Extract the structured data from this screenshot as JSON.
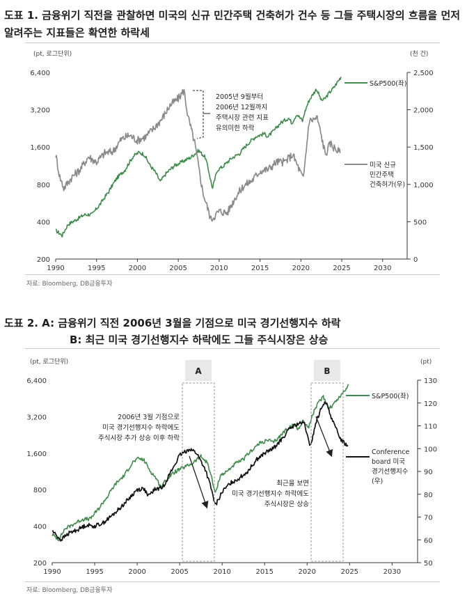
{
  "chart1": {
    "title_line1": "도표 1. 금융위기 직전을 관찰하면 미국의 신규 민간주택 건축허가 건수 등 그들 주택시장의 흐름을 먼저",
    "title_line2": "알려주는 지표들은 확연한 하락세",
    "source": "자료: Bloomberg, DB금융투자"
  },
  "chart2": {
    "title_line1": "도표 2. A: 금융위기 직전 2006년 3월을 기점으로 미국 경기선행지수 하락",
    "title_line2": "B: 최근 미국 경기선행지수 하락에도 그들 주식시장은 상승",
    "source": "자료: Bloomberg, DB금융투자"
  },
  "chart_data": [
    {
      "type": "line",
      "left_axis_unit": "(pt, 로그단위)",
      "right_axis_unit": "(천 건)",
      "xlim": [
        1990,
        2033
      ],
      "x_ticks": [
        1990,
        1995,
        2000,
        2005,
        2010,
        2015,
        2020,
        2025,
        2030
      ],
      "y_left_scale": "log",
      "y_left_ticks": [
        200,
        400,
        800,
        1600,
        3200,
        6400
      ],
      "y_left_tick_labels": [
        "200",
        "400",
        "800",
        "1,600",
        "3,200",
        "6,400"
      ],
      "y_right_lim": [
        0,
        2500
      ],
      "y_right_ticks": [
        0,
        500,
        1000,
        1500,
        2000,
        2500
      ],
      "y_right_tick_labels": [
        "0",
        "500",
        "1,000",
        "1,500",
        "2,000",
        "2,500"
      ],
      "grid": false,
      "series": [
        {
          "name": "S&P500(좌)",
          "axis": "left",
          "color": "#3f8a4a",
          "points": [
            [
              1990.0,
              340
            ],
            [
              1990.8,
              310
            ],
            [
              1991.5,
              380
            ],
            [
              1992.5,
              415
            ],
            [
              1993.5,
              455
            ],
            [
              1994.5,
              460
            ],
            [
              1995.5,
              560
            ],
            [
              1996.5,
              700
            ],
            [
              1997.5,
              900
            ],
            [
              1998.5,
              1050
            ],
            [
              1999.5,
              1350
            ],
            [
              2000.2,
              1450
            ],
            [
              2000.8,
              1400
            ],
            [
              2001.5,
              1150
            ],
            [
              2002.2,
              1000
            ],
            [
              2002.8,
              840
            ],
            [
              2003.5,
              980
            ],
            [
              2004.5,
              1130
            ],
            [
              2005.5,
              1220
            ],
            [
              2006.5,
              1320
            ],
            [
              2007.5,
              1500
            ],
            [
              2008.3,
              1320
            ],
            [
              2008.9,
              900
            ],
            [
              2009.2,
              740
            ],
            [
              2009.8,
              1050
            ],
            [
              2010.5,
              1120
            ],
            [
              2011.5,
              1300
            ],
            [
              2012.5,
              1420
            ],
            [
              2013.5,
              1700
            ],
            [
              2014.5,
              1950
            ],
            [
              2015.5,
              2050
            ],
            [
              2016.0,
              1950
            ],
            [
              2016.8,
              2200
            ],
            [
              2017.5,
              2500
            ],
            [
              2018.5,
              2750
            ],
            [
              2018.9,
              2500
            ],
            [
              2019.5,
              2950
            ],
            [
              2020.2,
              2600
            ],
            [
              2020.5,
              3100
            ],
            [
              2021.0,
              3800
            ],
            [
              2021.9,
              4700
            ],
            [
              2022.5,
              3800
            ],
            [
              2022.9,
              3900
            ],
            [
              2023.5,
              4400
            ],
            [
              2024.0,
              4800
            ],
            [
              2024.6,
              5500
            ],
            [
              2024.9,
              5900
            ]
          ]
        },
        {
          "name": "미국 신규 민간주택 건축허가(우)",
          "axis": "right",
          "color": "#8a8a8a",
          "points": [
            [
              1990.0,
              1400
            ],
            [
              1990.5,
              1100
            ],
            [
              1991.0,
              950
            ],
            [
              1992.0,
              1100
            ],
            [
              1993.0,
              1200
            ],
            [
              1994.0,
              1370
            ],
            [
              1995.0,
              1300
            ],
            [
              1996.0,
              1420
            ],
            [
              1997.0,
              1440
            ],
            [
              1998.0,
              1600
            ],
            [
              1999.0,
              1660
            ],
            [
              2000.0,
              1590
            ],
            [
              2001.0,
              1640
            ],
            [
              2002.0,
              1750
            ],
            [
              2003.0,
              1880
            ],
            [
              2004.0,
              2060
            ],
            [
              2005.0,
              2150
            ],
            [
              2005.7,
              2260
            ],
            [
              2006.2,
              1900
            ],
            [
              2007.0,
              1560
            ],
            [
              2008.0,
              900
            ],
            [
              2009.0,
              530
            ],
            [
              2010.0,
              640
            ],
            [
              2011.0,
              620
            ],
            [
              2012.0,
              830
            ],
            [
              2013.0,
              980
            ],
            [
              2014.0,
              1050
            ],
            [
              2015.0,
              1180
            ],
            [
              2016.0,
              1200
            ],
            [
              2017.0,
              1300
            ],
            [
              2018.0,
              1300
            ],
            [
              2019.0,
              1400
            ],
            [
              2020.3,
              1070
            ],
            [
              2021.0,
              1850
            ],
            [
              2022.0,
              1890
            ],
            [
              2022.5,
              1650
            ],
            [
              2023.0,
              1400
            ],
            [
              2023.6,
              1550
            ],
            [
              2024.0,
              1500
            ],
            [
              2024.8,
              1420
            ]
          ]
        }
      ],
      "annotations": [
        "2005년 9월부터",
        "2006년 12월까지",
        "주택시장 관련 지표",
        "유의미한 하락"
      ],
      "legend": [
        "S&P500(좌)",
        "미국 신규",
        "민간주택",
        "건축허가(우)"
      ]
    },
    {
      "type": "line",
      "left_axis_unit": "(pt, 로그단위)",
      "right_axis_unit": "(pt)",
      "xlim": [
        1990,
        2033
      ],
      "x_ticks": [
        1990,
        1995,
        2000,
        2005,
        2010,
        2015,
        2020,
        2025,
        2030
      ],
      "y_left_scale": "log",
      "y_left_ticks": [
        200,
        400,
        800,
        1600,
        3200,
        6400
      ],
      "y_left_tick_labels": [
        "200",
        "400",
        "800",
        "1,600",
        "3,200",
        "6,400"
      ],
      "y_right_lim": [
        50,
        130
      ],
      "y_right_ticks": [
        50,
        60,
        70,
        80,
        90,
        100,
        110,
        120,
        130
      ],
      "y_right_tick_labels": [
        "50",
        "60",
        "70",
        "80",
        "90",
        "100",
        "110",
        "120",
        "130"
      ],
      "grid": false,
      "series": [
        {
          "name": "S&P500(좌)",
          "axis": "left",
          "color": "#3f8a4a",
          "points": [
            [
              1990.0,
              340
            ],
            [
              1990.8,
              310
            ],
            [
              1991.5,
              380
            ],
            [
              1992.5,
              415
            ],
            [
              1993.5,
              455
            ],
            [
              1994.5,
              460
            ],
            [
              1995.5,
              560
            ],
            [
              1996.5,
              700
            ],
            [
              1997.5,
              900
            ],
            [
              1998.5,
              1050
            ],
            [
              1999.5,
              1350
            ],
            [
              2000.2,
              1450
            ],
            [
              2000.8,
              1400
            ],
            [
              2001.5,
              1150
            ],
            [
              2002.2,
              1000
            ],
            [
              2002.8,
              840
            ],
            [
              2003.5,
              980
            ],
            [
              2004.5,
              1130
            ],
            [
              2005.5,
              1220
            ],
            [
              2006.5,
              1320
            ],
            [
              2007.5,
              1500
            ],
            [
              2008.3,
              1320
            ],
            [
              2008.9,
              900
            ],
            [
              2009.2,
              740
            ],
            [
              2009.8,
              1050
            ],
            [
              2010.5,
              1120
            ],
            [
              2011.5,
              1300
            ],
            [
              2012.5,
              1420
            ],
            [
              2013.5,
              1700
            ],
            [
              2014.5,
              1950
            ],
            [
              2015.5,
              2050
            ],
            [
              2016.0,
              1950
            ],
            [
              2016.8,
              2200
            ],
            [
              2017.5,
              2500
            ],
            [
              2018.5,
              2750
            ],
            [
              2018.9,
              2500
            ],
            [
              2019.5,
              2950
            ],
            [
              2020.2,
              2600
            ],
            [
              2020.5,
              3100
            ],
            [
              2021.0,
              3800
            ],
            [
              2021.9,
              4700
            ],
            [
              2022.5,
              3800
            ],
            [
              2022.9,
              3900
            ],
            [
              2023.5,
              4400
            ],
            [
              2024.0,
              4800
            ],
            [
              2024.6,
              5500
            ],
            [
              2024.9,
              5900
            ]
          ]
        },
        {
          "name": "Conference board 미국 경기선행지수(우)",
          "axis": "right",
          "color": "#111111",
          "points": [
            [
              1990.0,
              64
            ],
            [
              1991.0,
              60
            ],
            [
              1992.0,
              63
            ],
            [
              1993.0,
              64.5
            ],
            [
              1994.0,
              66.5
            ],
            [
              1995.0,
              66
            ],
            [
              1996.0,
              67.5
            ],
            [
              1997.0,
              70.5
            ],
            [
              1998.0,
              74
            ],
            [
              1999.0,
              78
            ],
            [
              2000.0,
              82
            ],
            [
              2000.8,
              82.5
            ],
            [
              2001.3,
              79
            ],
            [
              2002.0,
              82
            ],
            [
              2003.0,
              83
            ],
            [
              2004.0,
              90
            ],
            [
              2005.0,
              97
            ],
            [
              2006.2,
              100
            ],
            [
              2007.0,
              98
            ],
            [
              2008.0,
              91
            ],
            [
              2008.6,
              84
            ],
            [
              2009.2,
              75
            ],
            [
              2010.0,
              81
            ],
            [
              2011.0,
              85
            ],
            [
              2012.0,
              87
            ],
            [
              2013.0,
              90
            ],
            [
              2014.0,
              95
            ],
            [
              2015.0,
              98
            ],
            [
              2016.0,
              100
            ],
            [
              2017.0,
              104
            ],
            [
              2018.0,
              109
            ],
            [
              2019.0,
              111
            ],
            [
              2019.7,
              111
            ],
            [
              2020.3,
              101
            ],
            [
              2020.6,
              104
            ],
            [
              2021.0,
              111
            ],
            [
              2021.9,
              120
            ],
            [
              2022.4,
              119
            ],
            [
              2023.0,
              112
            ],
            [
              2023.6,
              107
            ],
            [
              2024.0,
              104
            ],
            [
              2024.5,
              102
            ],
            [
              2024.8,
              101.5
            ]
          ]
        }
      ],
      "annotations": [
        "2006년 3월 기점으로",
        "미국 경기선행지수 하락에도",
        "주식시장 추가 상승 이후 하락",
        "최근을 보면",
        "미국 경기선행지수 하락에도",
        "주식시장은 상승"
      ],
      "boxes": [
        "A",
        "B"
      ],
      "legend": [
        "S&P500(좌)",
        "Conference",
        "board 미국",
        "경기선행지수",
        "(우)"
      ]
    }
  ],
  "colors": {
    "sp500": "#3f8a4a",
    "permits": "#8a8a8a",
    "lei": "#111111",
    "box": "#999999",
    "box_label_bg": "#e8e8e8"
  }
}
